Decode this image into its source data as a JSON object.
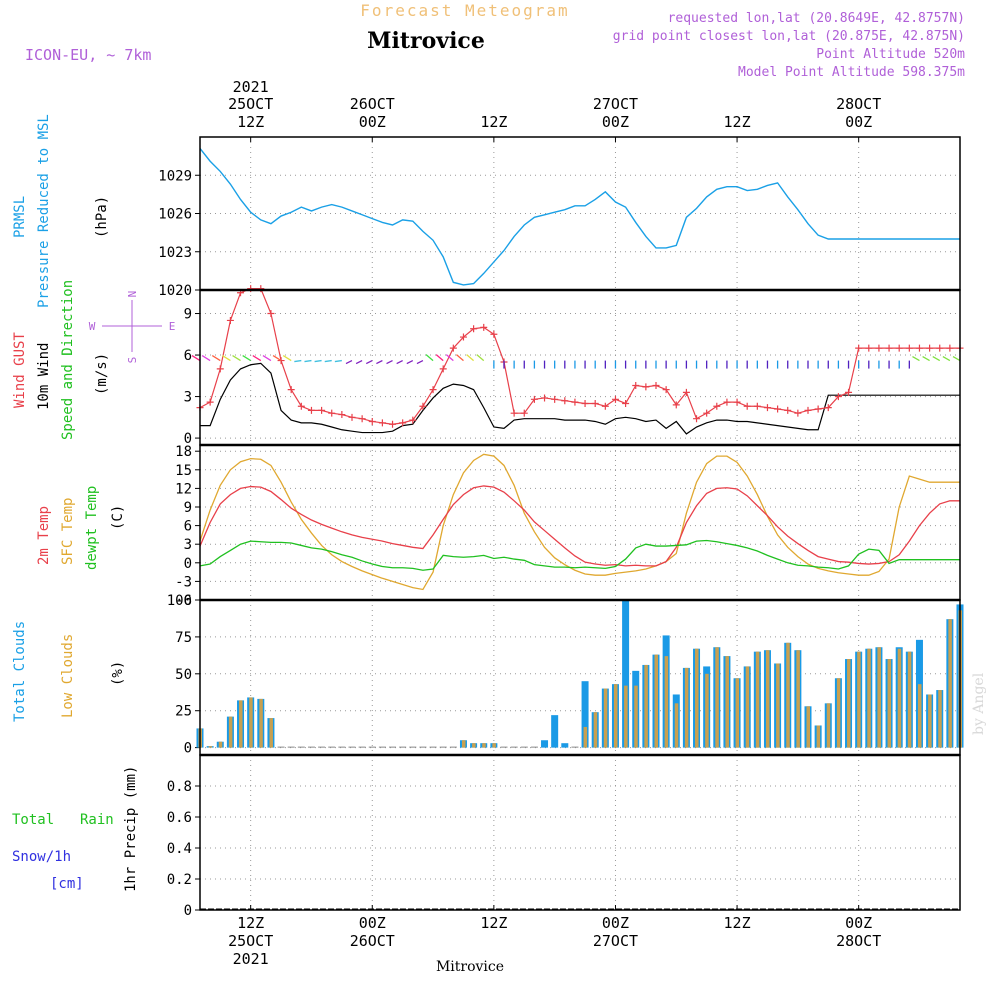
{
  "header": {
    "supertitle": "Forecast Meteogram",
    "title": "Mitrovice",
    "model": "ICON-EU, ~ 7km",
    "requested": "requested lon,lat (20.8649E, 42.8757N)",
    "gridpoint": "grid point closest lon,lat (20.875E, 42.875N)",
    "point_altitude": "Point Altitude 520m",
    "model_altitude": "Model Point Altitude 598.375m",
    "footer": "Mitrovice",
    "watermark": "by Angel"
  },
  "colors": {
    "pressure": "#1aa0e6",
    "gust": "#e8404a",
    "wind": "#000000",
    "temp2m": "#e8404a",
    "sfc": "#e0a830",
    "dewpt": "#20c020",
    "total_clouds": "#1a9ae6",
    "low_clouds": "#c8a050",
    "rain": "#20c020",
    "snow": "#3030e0",
    "header_purple": "#b060d8",
    "header_orange": "#f0c078"
  },
  "time_axis": {
    "top_year": "2021",
    "ticks_top": [
      {
        "h": 12,
        "l1": "25OCT",
        "l2": "12Z"
      },
      {
        "h": 24,
        "l1": "26OCT",
        "l2": "00Z"
      },
      {
        "h": 36,
        "l1": "",
        "l2": "12Z"
      },
      {
        "h": 48,
        "l1": "27OCT",
        "l2": "00Z"
      },
      {
        "h": 60,
        "l1": "",
        "l2": "12Z"
      },
      {
        "h": 72,
        "l1": "28OCT",
        "l2": "00Z"
      }
    ],
    "ticks_bottom": [
      {
        "h": 12,
        "l1": "12Z",
        "l2": "25OCT",
        "l3": "2021"
      },
      {
        "h": 24,
        "l1": "00Z",
        "l2": "26OCT",
        "l3": ""
      },
      {
        "h": 36,
        "l1": "12Z",
        "l2": "",
        "l3": ""
      },
      {
        "h": 48,
        "l1": "00Z",
        "l2": "27OCT",
        "l3": ""
      },
      {
        "h": 60,
        "l1": "12Z",
        "l2": "",
        "l3": ""
      },
      {
        "h": 72,
        "l1": "00Z",
        "l2": "28OCT",
        "l3": ""
      }
    ]
  },
  "panels": {
    "pressure": {
      "label1": "PRMSL",
      "label2": "Pressure Reduced to MSL",
      "unit": "(hPa)"
    },
    "wind": {
      "label1": "Wind GUST",
      "label2": "10m Wind",
      "label3": "Speed and Direction",
      "unit": "(m/s)",
      "compass": {
        "w": "W",
        "e": "E",
        "n": "N",
        "s": "S"
      }
    },
    "temp": {
      "label1": "2m Temp",
      "label2": "SFC Temp",
      "label3": "dewpt Temp",
      "unit": "(C)"
    },
    "clouds": {
      "label1": "Total Clouds",
      "label2": "Low Clouds",
      "unit": "(%)"
    },
    "precip": {
      "label1": "Total",
      "label2": "Rain",
      "label3": "Snow/1h",
      "label4": "[cm]",
      "unit": "1hr Precip (mm)"
    }
  },
  "chart_data": [
    {
      "type": "line",
      "name": "pressure",
      "ylim": [
        1020,
        1032
      ],
      "yticks": [
        1020,
        1023,
        1026,
        1029
      ],
      "x": [
        7,
        8,
        9,
        10,
        11,
        12,
        13,
        14,
        15,
        16,
        17,
        18,
        19,
        20,
        21,
        22,
        23,
        24,
        25,
        26,
        27,
        28,
        29,
        30,
        31,
        32,
        33,
        34,
        35,
        36,
        37,
        38,
        39,
        40,
        41,
        42,
        43,
        44,
        45,
        46,
        47,
        48,
        49,
        50,
        51,
        52,
        53,
        54,
        55,
        56,
        57,
        58,
        59,
        60,
        61,
        62,
        63,
        64,
        65,
        66,
        67,
        68,
        69,
        70,
        71,
        72,
        73,
        74,
        75,
        76,
        77,
        78,
        79,
        80,
        81,
        82
      ],
      "y": [
        1031.1,
        1030.1,
        1029.3,
        1028.3,
        1027.1,
        1026.1,
        1025.5,
        1025.2,
        1025.8,
        1026.1,
        1026.5,
        1026.2,
        1026.5,
        1026.7,
        1026.5,
        1026.2,
        1025.9,
        1025.6,
        1025.3,
        1025.1,
        1025.5,
        1025.4,
        1024.6,
        1023.9,
        1022.6,
        1020.6,
        1020.4,
        1020.5,
        1021.3,
        1022.2,
        1023.1,
        1024.2,
        1025.1,
        1025.7,
        1025.9,
        1026.1,
        1026.3,
        1026.6,
        1026.6,
        1027.1,
        1027.7,
        1026.9,
        1026.5,
        1025.3,
        1024.2,
        1023.3,
        1023.3,
        1023.5,
        1025.7,
        1026.4,
        1027.3,
        1027.9,
        1028.1,
        1028.1,
        1027.8,
        1027.9,
        1028.2,
        1028.4,
        1027.3,
        1026.3,
        1025.2,
        1024.3,
        1024.0,
        1024.0,
        1024.0,
        1024.0,
        1024.0,
        1024.0,
        1024.0,
        1024.0,
        1024.0,
        1024.0,
        1024.0,
        1024.0,
        1024.0,
        1024.0
      ]
    },
    {
      "type": "line",
      "name": "wind",
      "ylim": [
        -0.5,
        10.7
      ],
      "yticks": [
        0,
        3,
        6,
        9
      ],
      "x": [
        7,
        8,
        9,
        10,
        11,
        12,
        13,
        14,
        15,
        16,
        17,
        18,
        19,
        20,
        21,
        22,
        23,
        24,
        25,
        26,
        27,
        28,
        29,
        30,
        31,
        32,
        33,
        34,
        35,
        36,
        37,
        38,
        39,
        40,
        41,
        42,
        43,
        44,
        45,
        46,
        47,
        48,
        49,
        50,
        51,
        52,
        53,
        54,
        55,
        56,
        57,
        58,
        59,
        60,
        61,
        62,
        63,
        64,
        65,
        66,
        67,
        68,
        69,
        70,
        71,
        72,
        73,
        74,
        75,
        76,
        77,
        78,
        79,
        80,
        81,
        82
      ],
      "gust": [
        2.2,
        2.6,
        5.0,
        8.5,
        10.5,
        10.8,
        10.8,
        9.0,
        5.6,
        3.5,
        2.3,
        2.0,
        2.0,
        1.8,
        1.7,
        1.5,
        1.4,
        1.2,
        1.1,
        1.0,
        1.1,
        1.3,
        2.3,
        3.5,
        5.0,
        6.5,
        7.3,
        7.9,
        8.0,
        7.5,
        5.5,
        1.8,
        1.8,
        2.8,
        2.9,
        2.8,
        2.7,
        2.6,
        2.5,
        2.5,
        2.3,
        2.8,
        2.5,
        3.8,
        3.7,
        3.8,
        3.5,
        2.4,
        3.3,
        1.4,
        1.8,
        2.3,
        2.6,
        2.6,
        2.3,
        2.3,
        2.2,
        2.1,
        2.0,
        1.8,
        2.0,
        2.1,
        2.2,
        3.0,
        3.3,
        6.5,
        6.5,
        6.5,
        6.5,
        6.5,
        6.5,
        6.5,
        6.5,
        6.5,
        6.5,
        6.5
      ],
      "speed": [
        0.9,
        0.9,
        2.8,
        4.2,
        5.0,
        5.3,
        5.4,
        4.7,
        2.0,
        1.3,
        1.1,
        1.1,
        1.0,
        0.8,
        0.6,
        0.5,
        0.4,
        0.4,
        0.4,
        0.5,
        0.9,
        1.0,
        2.0,
        2.9,
        3.6,
        3.9,
        3.8,
        3.5,
        2.2,
        0.8,
        0.7,
        1.3,
        1.4,
        1.4,
        1.4,
        1.4,
        1.3,
        1.3,
        1.3,
        1.2,
        1.0,
        1.4,
        1.5,
        1.4,
        1.2,
        1.3,
        0.7,
        1.2,
        0.3,
        0.8,
        1.1,
        1.3,
        1.3,
        1.2,
        1.2,
        1.1,
        1.0,
        0.9,
        0.8,
        0.7,
        0.6,
        0.6,
        3.1,
        3.1,
        3.1,
        3.1,
        3.1,
        3.1,
        3.1,
        3.1,
        3.1,
        3.1,
        3.1,
        3.1,
        3.1,
        3.1
      ]
    },
    {
      "type": "line",
      "name": "temperature",
      "ylim": [
        -6,
        19
      ],
      "yticks": [
        -6,
        -3,
        0,
        3,
        6,
        9,
        12,
        15,
        18
      ],
      "x": [
        7,
        8,
        9,
        10,
        11,
        12,
        13,
        14,
        15,
        16,
        17,
        18,
        19,
        20,
        21,
        22,
        23,
        24,
        25,
        26,
        27,
        28,
        29,
        30,
        31,
        32,
        33,
        34,
        35,
        36,
        37,
        38,
        39,
        40,
        41,
        42,
        43,
        44,
        45,
        46,
        47,
        48,
        49,
        50,
        51,
        52,
        53,
        54,
        55,
        56,
        57,
        58,
        59,
        60,
        61,
        62,
        63,
        64,
        65,
        66,
        67,
        68,
        69,
        70,
        71,
        72,
        73,
        74,
        75,
        76,
        77,
        78,
        79,
        80,
        81,
        82
      ],
      "temp2m": [
        2.7,
        6.5,
        9.5,
        11.0,
        12.0,
        12.3,
        12.2,
        11.5,
        10.2,
        8.8,
        7.8,
        6.9,
        6.2,
        5.6,
        5.0,
        4.5,
        4.1,
        3.8,
        3.5,
        3.1,
        2.8,
        2.5,
        2.3,
        4.5,
        7.0,
        9.4,
        11.0,
        12.1,
        12.4,
        12.2,
        11.4,
        10.0,
        8.5,
        6.6,
        5.2,
        3.8,
        2.4,
        1.1,
        0.1,
        -0.2,
        -0.4,
        -0.3,
        -0.5,
        -0.4,
        -0.5,
        -0.5,
        0.2,
        2.5,
        6.5,
        9.2,
        11.2,
        12.0,
        12.1,
        11.9,
        10.8,
        9.2,
        7.6,
        5.8,
        4.3,
        3.1,
        2.0,
        1.0,
        0.6,
        0.2,
        0.1,
        -0.1,
        -0.2,
        -0.1,
        0.2,
        1.3,
        3.5,
        6.0,
        8.0,
        9.5,
        10.0,
        10.0
      ],
      "sfc": [
        3.5,
        8.5,
        12.5,
        15.0,
        16.3,
        16.8,
        16.7,
        15.7,
        13.0,
        9.8,
        7.0,
        4.8,
        2.8,
        1.3,
        0.2,
        -0.6,
        -1.3,
        -1.9,
        -2.5,
        -3.0,
        -3.5,
        -4.0,
        -4.3,
        -1.5,
        6.0,
        11.0,
        14.5,
        16.5,
        17.5,
        17.2,
        15.7,
        12.5,
        8.0,
        5.0,
        2.5,
        0.8,
        -0.3,
        -1.2,
        -1.8,
        -2.0,
        -2.0,
        -1.7,
        -1.5,
        -1.3,
        -1.0,
        -0.5,
        0.2,
        1.5,
        8.0,
        13.0,
        16.0,
        17.2,
        17.2,
        16.2,
        14.0,
        11.0,
        7.5,
        4.5,
        2.5,
        1.0,
        -0.2,
        -0.9,
        -1.3,
        -1.6,
        -1.8,
        -2.0,
        -2.0,
        -1.4,
        0.6,
        9.0,
        14.0,
        13.5,
        13.0,
        13.0,
        13.0,
        13.0
      ],
      "dewpt": [
        -0.5,
        -0.2,
        1.0,
        2.0,
        3.0,
        3.5,
        3.4,
        3.3,
        3.3,
        3.2,
        2.8,
        2.4,
        2.2,
        1.8,
        1.3,
        0.9,
        0.3,
        -0.2,
        -0.6,
        -0.8,
        -0.8,
        -0.9,
        -1.2,
        -1.0,
        1.2,
        1.0,
        0.9,
        1.0,
        1.2,
        0.7,
        0.9,
        0.6,
        0.4,
        -0.3,
        -0.5,
        -0.7,
        -0.7,
        -0.8,
        -0.7,
        -0.8,
        -0.9,
        -0.6,
        0.6,
        2.4,
        3.0,
        2.7,
        2.7,
        2.8,
        2.9,
        3.5,
        3.6,
        3.4,
        3.1,
        2.8,
        2.4,
        1.9,
        1.2,
        0.6,
        0.0,
        -0.4,
        -0.5,
        -0.7,
        -0.8,
        -1.0,
        -0.5,
        1.4,
        2.2,
        2.0,
        -0.1,
        0.5,
        0.5,
        0.5,
        0.5,
        0.5,
        0.5,
        0.5
      ]
    },
    {
      "type": "bar",
      "name": "clouds",
      "ylim": [
        -5,
        100
      ],
      "yticks": [
        0,
        25,
        50,
        75,
        100
      ],
      "x": [
        7,
        8,
        9,
        10,
        11,
        12,
        13,
        14,
        15,
        16,
        17,
        18,
        19,
        20,
        21,
        22,
        23,
        24,
        25,
        26,
        27,
        28,
        29,
        30,
        31,
        32,
        33,
        34,
        35,
        36,
        37,
        38,
        39,
        40,
        41,
        42,
        43,
        44,
        45,
        46,
        47,
        48,
        49,
        50,
        51,
        52,
        53,
        54,
        55,
        56,
        57,
        58,
        59,
        60,
        61,
        62,
        63,
        64,
        65,
        66,
        67,
        68,
        69,
        70,
        71,
        72,
        73,
        74,
        75,
        76,
        77,
        78,
        79,
        80,
        81,
        82
      ],
      "total": [
        13,
        1,
        4,
        21,
        32,
        34,
        33,
        20,
        0,
        0,
        0,
        0,
        0,
        0,
        0,
        0,
        0,
        0,
        0,
        0,
        0,
        0,
        0,
        0,
        0,
        0,
        5,
        3,
        3,
        3,
        0,
        0,
        0,
        0,
        5,
        22,
        3,
        0,
        45,
        24,
        40,
        43,
        100,
        52,
        56,
        63,
        76,
        36,
        54,
        67,
        55,
        68,
        62,
        47,
        55,
        65,
        66,
        57,
        71,
        66,
        28,
        15,
        30,
        47,
        60,
        65,
        67,
        68,
        60,
        68,
        65,
        73,
        36,
        39,
        87,
        97
      ],
      "low": [
        13,
        1,
        4,
        21,
        32,
        34,
        33,
        20,
        0,
        0,
        0,
        0,
        0,
        0,
        0,
        0,
        0,
        0,
        0,
        0,
        0,
        0,
        0,
        0,
        0,
        0,
        5,
        3,
        3,
        3,
        0,
        0,
        0,
        0,
        0,
        0,
        0,
        0,
        14,
        24,
        40,
        43,
        42,
        42,
        56,
        63,
        62,
        30,
        54,
        67,
        50,
        68,
        62,
        47,
        55,
        65,
        66,
        57,
        71,
        66,
        28,
        15,
        30,
        47,
        60,
        65,
        67,
        68,
        60,
        67,
        65,
        43,
        36,
        39,
        87,
        93
      ]
    },
    {
      "type": "bar",
      "name": "precip",
      "ylim": [
        0,
        1.0
      ],
      "yticks": [
        0,
        0.2,
        0.4,
        0.6,
        0.8
      ],
      "x": [],
      "values": []
    }
  ]
}
